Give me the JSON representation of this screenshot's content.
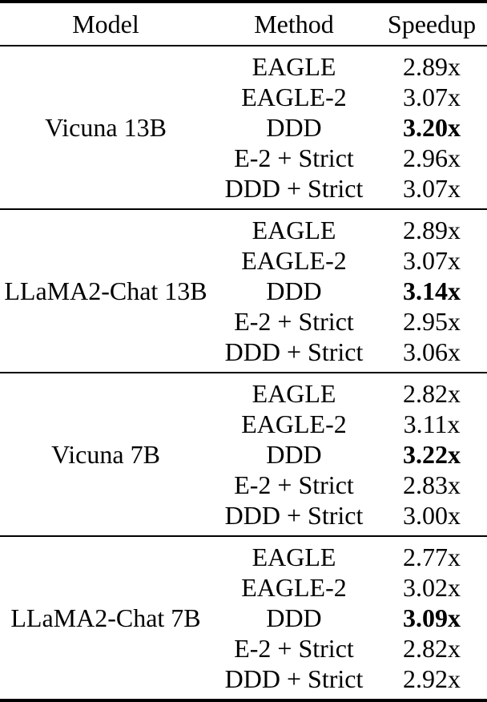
{
  "table": {
    "headers": {
      "model": "Model",
      "method": "Method",
      "speedup": "Speedup"
    },
    "colors": {
      "text": "#000000",
      "background": "#ffffff",
      "rule": "#000000"
    },
    "sections": [
      {
        "model": "Vicuna 13B",
        "rows": [
          {
            "method": "EAGLE",
            "speedup": "2.89x",
            "bold": false
          },
          {
            "method": "EAGLE-2",
            "speedup": "3.07x",
            "bold": false
          },
          {
            "method": "DDD",
            "speedup": "3.20x",
            "bold": true
          },
          {
            "method": "E-2 + Strict",
            "speedup": "2.96x",
            "bold": false
          },
          {
            "method": "DDD + Strict",
            "speedup": "3.07x",
            "bold": false
          }
        ]
      },
      {
        "model": "LLaMA2-Chat 13B",
        "rows": [
          {
            "method": "EAGLE",
            "speedup": "2.89x",
            "bold": false
          },
          {
            "method": "EAGLE-2",
            "speedup": "3.07x",
            "bold": false
          },
          {
            "method": "DDD",
            "speedup": "3.14x",
            "bold": true
          },
          {
            "method": "E-2 + Strict",
            "speedup": "2.95x",
            "bold": false
          },
          {
            "method": "DDD + Strict",
            "speedup": "3.06x",
            "bold": false
          }
        ]
      },
      {
        "model": "Vicuna 7B",
        "rows": [
          {
            "method": "EAGLE",
            "speedup": "2.82x",
            "bold": false
          },
          {
            "method": "EAGLE-2",
            "speedup": "3.11x",
            "bold": false
          },
          {
            "method": "DDD",
            "speedup": "3.22x",
            "bold": true
          },
          {
            "method": "E-2 + Strict",
            "speedup": "2.83x",
            "bold": false
          },
          {
            "method": "DDD + Strict",
            "speedup": "3.00x",
            "bold": false
          }
        ]
      },
      {
        "model": "LLaMA2-Chat 7B",
        "rows": [
          {
            "method": "EAGLE",
            "speedup": "2.77x",
            "bold": false
          },
          {
            "method": "EAGLE-2",
            "speedup": "3.02x",
            "bold": false
          },
          {
            "method": "DDD",
            "speedup": "3.09x",
            "bold": true
          },
          {
            "method": "E-2 + Strict",
            "speedup": "2.82x",
            "bold": false
          },
          {
            "method": "DDD + Strict",
            "speedup": "2.92x",
            "bold": false
          }
        ]
      }
    ]
  }
}
